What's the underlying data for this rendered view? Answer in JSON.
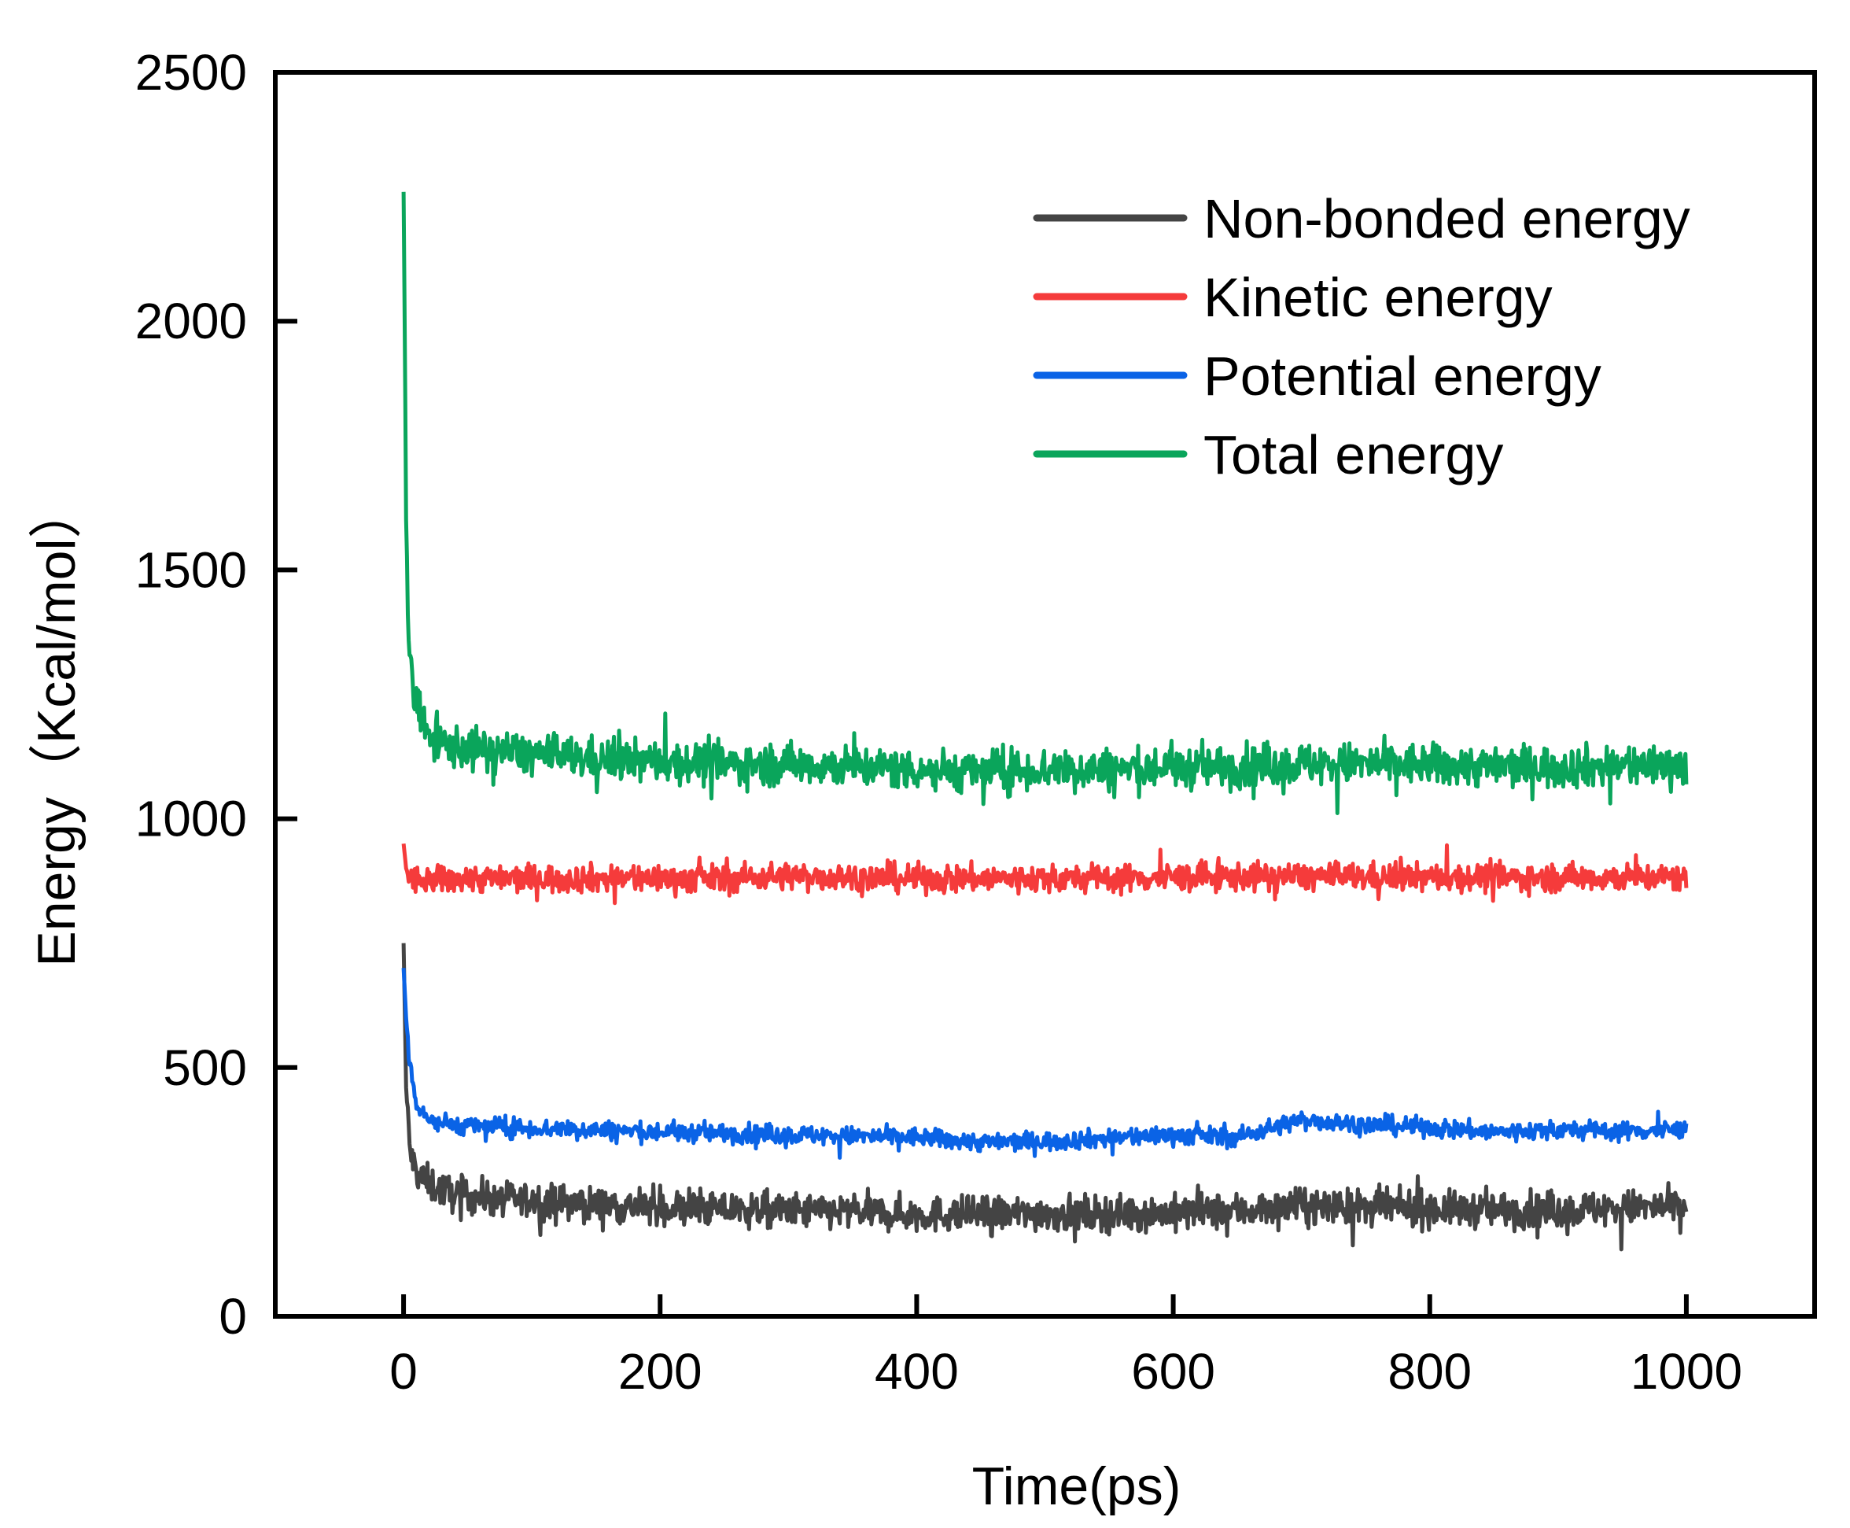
{
  "chart_data": {
    "type": "line",
    "xlabel": "Time(ps)",
    "ylabel": "Energy（Kcal/mol）",
    "xlim": [
      -100,
      1100
    ],
    "ylim": [
      0,
      2500
    ],
    "xticks": [
      0,
      200,
      400,
      600,
      800,
      1000
    ],
    "yticks": [
      0,
      500,
      1000,
      1500,
      2000,
      2500
    ],
    "legend_position": "top-right",
    "series": [
      {
        "name": "Non-bonded energy",
        "color": "#444444",
        "x": [
          0,
          2,
          5,
          10,
          20,
          40,
          60,
          80,
          100,
          150,
          200,
          250,
          300,
          350,
          400,
          450,
          500,
          550,
          600,
          650,
          700,
          750,
          800,
          850,
          900,
          950,
          1000
        ],
        "y": [
          750,
          460,
          330,
          290,
          265,
          245,
          240,
          235,
          232,
          225,
          218,
          215,
          212,
          210,
          205,
          205,
          207,
          206,
          208,
          212,
          222,
          218,
          216,
          214,
          213,
          218,
          220
        ],
        "noise": 38
      },
      {
        "name": "Kinetic energy",
        "color": "#F53B3B",
        "x": [
          0,
          2,
          5,
          10,
          20,
          40,
          60,
          80,
          100,
          150,
          200,
          250,
          300,
          350,
          400,
          450,
          500,
          550,
          600,
          650,
          700,
          750,
          800,
          850,
          900,
          950,
          1000
        ],
        "y": [
          950,
          900,
          880,
          875,
          875,
          880,
          880,
          880,
          880,
          880,
          880,
          880,
          885,
          882,
          880,
          880,
          880,
          880,
          882,
          883,
          884,
          883,
          882,
          882,
          882,
          882,
          882
        ],
        "noise": 30
      },
      {
        "name": "Potential energy",
        "color": "#0A63E6",
        "x": [
          0,
          2,
          5,
          10,
          20,
          40,
          60,
          80,
          100,
          150,
          200,
          250,
          300,
          350,
          400,
          450,
          500,
          550,
          600,
          650,
          700,
          750,
          800,
          850,
          900,
          950,
          1000
        ],
        "y": [
          700,
          600,
          500,
          430,
          395,
          385,
          382,
          380,
          378,
          375,
          370,
          368,
          365,
          362,
          360,
          350,
          352,
          358,
          365,
          360,
          395,
          385,
          380,
          370,
          375,
          372,
          375
        ],
        "noise": 20
      },
      {
        "name": "Total energy",
        "color": "#0AA55B",
        "x": [
          0,
          1,
          2,
          4,
          8,
          15,
          30,
          50,
          80,
          100,
          150,
          200,
          250,
          300,
          350,
          400,
          450,
          500,
          550,
          600,
          650,
          700,
          750,
          800,
          850,
          900,
          950,
          1000
        ],
        "y": [
          2260,
          1950,
          1600,
          1380,
          1250,
          1180,
          1150,
          1140,
          1135,
          1130,
          1120,
          1115,
          1110,
          1110,
          1105,
          1100,
          1095,
          1100,
          1100,
          1102,
          1105,
          1110,
          1110,
          1108,
          1105,
          1105,
          1105,
          1110
        ],
        "noise": 45
      }
    ]
  }
}
